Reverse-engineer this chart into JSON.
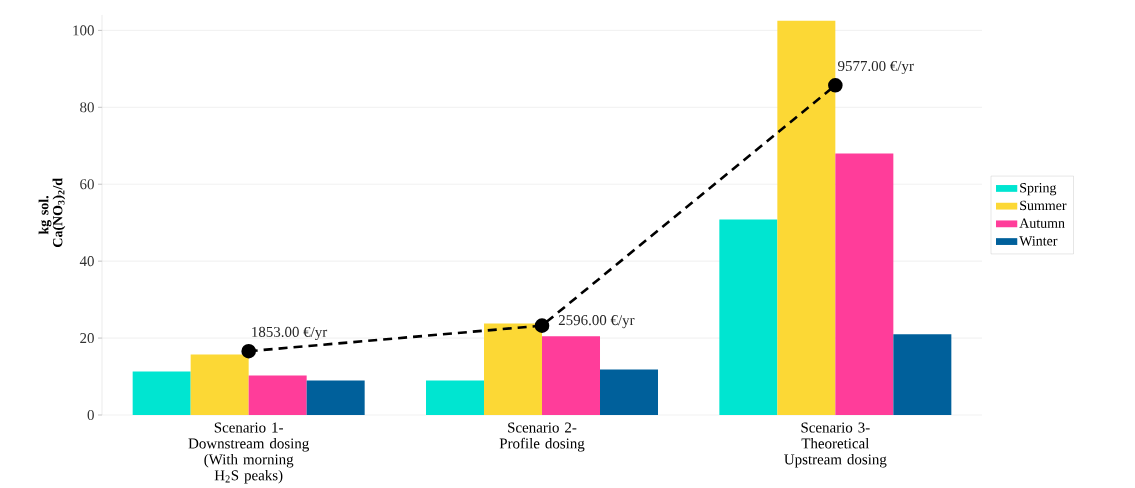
{
  "chart_data": {
    "type": "bar",
    "ylabel": "kg sol. Ca(NO$_{3}$)$_{2}$/d",
    "categories": [
      "Scenario 1- Downstream dosing (With morning H$_{2}$S peaks)",
      "Scenario 2- Profile dosing",
      "Scenario 3- Theoretical Upstream dosing"
    ],
    "series": [
      {
        "name": "Spring",
        "color": "#00e5d1",
        "values": [
          11.3,
          9.0,
          50.8
        ]
      },
      {
        "name": "Summer",
        "color": "#fcd835",
        "values": [
          15.7,
          23.8,
          102.5
        ]
      },
      {
        "name": "Autumn",
        "color": "#ff3d9a",
        "values": [
          10.3,
          20.5,
          68
        ]
      },
      {
        "name": "Winter",
        "color": "#00609b",
        "values": [
          9.0,
          11.8,
          21
        ]
      },
      {
        "type": "line",
        "axis": "y2",
        "color": "#000000",
        "values": [
          1853,
          2596,
          9577
        ],
        "value_labels": [
          "1853.00 €/yr",
          "2596.00 €/yr",
          "9577.00 €/yr"
        ],
        "marker": "circle",
        "line_style": "dashed"
      }
    ],
    "ylim": [
      0,
      104
    ],
    "yticks": [
      0,
      20,
      40,
      60,
      80,
      100
    ],
    "y2lim": [
      0,
      11620
    ],
    "grid": "y",
    "legend": "right"
  }
}
